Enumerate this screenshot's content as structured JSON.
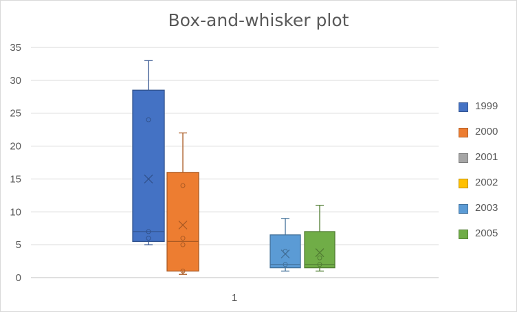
{
  "chart_data": {
    "type": "box",
    "title": "Box-and-whisker plot",
    "categories": [
      "1"
    ],
    "ylim": [
      0,
      35
    ],
    "yticks": [
      0,
      5,
      10,
      15,
      20,
      25,
      30,
      35
    ],
    "grid": true,
    "legend_position": "right",
    "series": [
      {
        "name": "1999",
        "color": "#4472c4",
        "min": 5,
        "q1": 5.5,
        "median": 7,
        "q3": 28.5,
        "max": 33,
        "mean": 15,
        "points": [
          6,
          7,
          24
        ]
      },
      {
        "name": "2000",
        "color": "#ed7d31",
        "min": 0.5,
        "q1": 1,
        "median": 5.5,
        "q3": 16,
        "max": 22,
        "mean": 8,
        "points": [
          1,
          5,
          6,
          14
        ]
      },
      {
        "name": "2001",
        "color": "#a5a5a5"
      },
      {
        "name": "2002",
        "color": "#ffc000"
      },
      {
        "name": "2003",
        "color": "#5b9bd5",
        "min": 1,
        "q1": 1.5,
        "median": 2,
        "q3": 6.5,
        "max": 9,
        "mean": 3.6,
        "points": [
          2,
          4
        ]
      },
      {
        "name": "2005",
        "color": "#70ad47",
        "min": 1,
        "q1": 1.5,
        "median": 2,
        "q3": 7,
        "max": 11,
        "mean": 3.8,
        "points": [
          2,
          3
        ]
      }
    ]
  }
}
